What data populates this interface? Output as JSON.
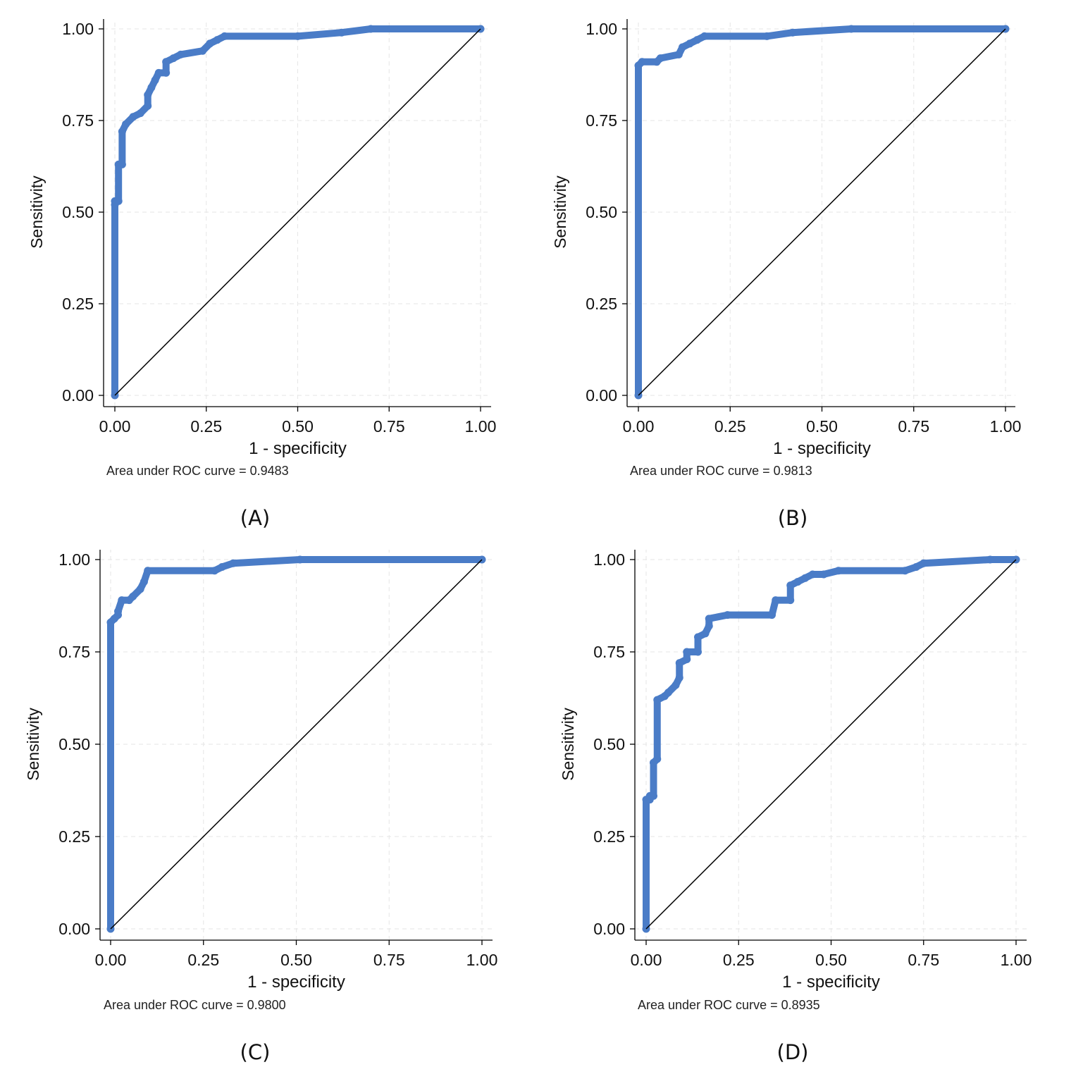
{
  "chart_data": [
    {
      "panel": "(A)",
      "type": "line",
      "xlabel": "1 - specificity",
      "ylabel": "Sensitivity",
      "note": "Area under ROC curve = 0.9483",
      "xlim": [
        0,
        1
      ],
      "ylim": [
        0,
        1
      ],
      "xticks": [
        "0.00",
        "0.25",
        "0.50",
        "0.75",
        "1.00"
      ],
      "yticks": [
        "0.00",
        "0.25",
        "0.50",
        "0.75",
        "1.00"
      ],
      "grid": true,
      "series": [
        {
          "name": "ROC curve",
          "color": "#4a7cc7",
          "x": [
            0.0,
            0.0,
            0.0,
            0.01,
            0.01,
            0.02,
            0.02,
            0.03,
            0.05,
            0.07,
            0.09,
            0.09,
            0.1,
            0.11,
            0.12,
            0.14,
            0.14,
            0.16,
            0.18,
            0.24,
            0.26,
            0.28,
            0.3,
            0.5,
            0.62,
            0.7,
            1.0
          ],
          "y": [
            0.0,
            0.52,
            0.53,
            0.53,
            0.63,
            0.63,
            0.72,
            0.74,
            0.76,
            0.77,
            0.79,
            0.82,
            0.84,
            0.86,
            0.88,
            0.88,
            0.91,
            0.92,
            0.93,
            0.94,
            0.96,
            0.97,
            0.98,
            0.98,
            0.99,
            1.0,
            1.0
          ]
        },
        {
          "name": "reference",
          "color": "#000000",
          "x": [
            0,
            1
          ],
          "y": [
            0,
            1
          ]
        }
      ]
    },
    {
      "panel": "(B)",
      "type": "line",
      "xlabel": "1 - specificity",
      "ylabel": "Sensitivity",
      "note": "Area under ROC curve = 0.9813",
      "xlim": [
        0,
        1
      ],
      "ylim": [
        0,
        1
      ],
      "xticks": [
        "0.00",
        "0.25",
        "0.50",
        "0.75",
        "1.00"
      ],
      "yticks": [
        "0.00",
        "0.25",
        "0.50",
        "0.75",
        "1.00"
      ],
      "grid": true,
      "series": [
        {
          "name": "ROC curve",
          "color": "#4a7cc7",
          "x": [
            0.0,
            0.0,
            0.01,
            0.05,
            0.06,
            0.11,
            0.12,
            0.14,
            0.16,
            0.18,
            0.35,
            0.42,
            0.58,
            1.0
          ],
          "y": [
            0.0,
            0.9,
            0.91,
            0.91,
            0.92,
            0.93,
            0.95,
            0.96,
            0.97,
            0.98,
            0.98,
            0.99,
            1.0,
            1.0
          ]
        },
        {
          "name": "reference",
          "color": "#000000",
          "x": [
            0,
            1
          ],
          "y": [
            0,
            1
          ]
        }
      ]
    },
    {
      "panel": "(C)",
      "type": "line",
      "xlabel": "1 - specificity",
      "ylabel": "Sensitivity",
      "note": "Area under ROC curve = 0.9800",
      "xlim": [
        0,
        1
      ],
      "ylim": [
        0,
        1
      ],
      "xticks": [
        "0.00",
        "0.25",
        "0.50",
        "0.75",
        "1.00"
      ],
      "yticks": [
        "0.00",
        "0.25",
        "0.50",
        "0.75",
        "1.00"
      ],
      "grid": true,
      "series": [
        {
          "name": "ROC curve",
          "color": "#4a7cc7",
          "x": [
            0.0,
            0.0,
            0.01,
            0.02,
            0.02,
            0.03,
            0.05,
            0.06,
            0.08,
            0.09,
            0.1,
            0.28,
            0.3,
            0.33,
            0.51,
            1.0
          ],
          "y": [
            0.0,
            0.83,
            0.84,
            0.85,
            0.86,
            0.89,
            0.89,
            0.9,
            0.92,
            0.94,
            0.97,
            0.97,
            0.98,
            0.99,
            1.0,
            1.0
          ]
        },
        {
          "name": "reference",
          "color": "#000000",
          "x": [
            0,
            1
          ],
          "y": [
            0,
            1
          ]
        }
      ]
    },
    {
      "panel": "(D)",
      "type": "line",
      "xlabel": "1 - specificity",
      "ylabel": "Sensitivity",
      "note": "Area under ROC curve = 0.8935",
      "xlim": [
        0,
        1
      ],
      "ylim": [
        0,
        1
      ],
      "xticks": [
        "0.00",
        "0.25",
        "0.50",
        "0.75",
        "1.00"
      ],
      "yticks": [
        "0.00",
        "0.25",
        "0.50",
        "0.75",
        "1.00"
      ],
      "grid": true,
      "series": [
        {
          "name": "ROC curve",
          "color": "#4a7cc7",
          "x": [
            0.0,
            0.0,
            0.01,
            0.01,
            0.02,
            0.02,
            0.03,
            0.03,
            0.05,
            0.06,
            0.08,
            0.09,
            0.09,
            0.11,
            0.11,
            0.14,
            0.14,
            0.16,
            0.17,
            0.17,
            0.22,
            0.34,
            0.35,
            0.39,
            0.39,
            0.41,
            0.43,
            0.45,
            0.48,
            0.52,
            0.7,
            0.73,
            0.75,
            0.93,
            1.0
          ],
          "y": [
            0.0,
            0.35,
            0.35,
            0.36,
            0.36,
            0.45,
            0.46,
            0.62,
            0.63,
            0.64,
            0.66,
            0.68,
            0.72,
            0.73,
            0.75,
            0.75,
            0.79,
            0.8,
            0.82,
            0.84,
            0.85,
            0.85,
            0.89,
            0.89,
            0.93,
            0.94,
            0.95,
            0.96,
            0.96,
            0.97,
            0.97,
            0.98,
            0.99,
            1.0,
            1.0
          ]
        },
        {
          "name": "reference",
          "color": "#000000",
          "x": [
            0,
            1
          ],
          "y": [
            0,
            1
          ]
        }
      ]
    }
  ]
}
